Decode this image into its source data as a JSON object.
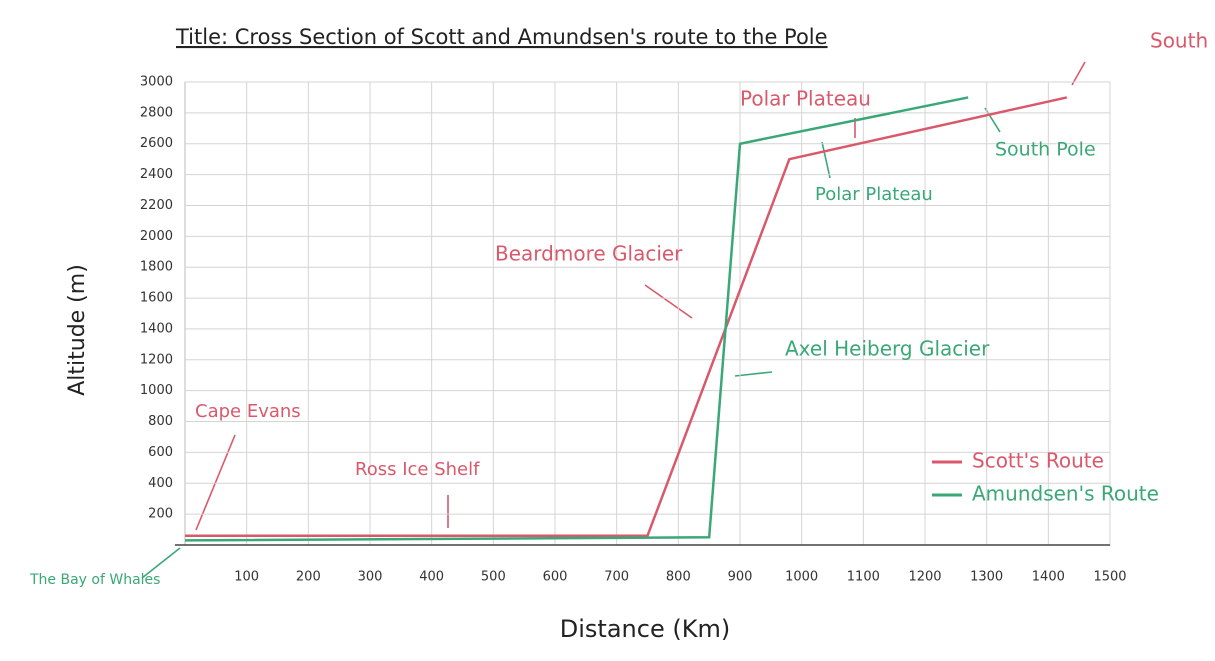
{
  "chart_data": {
    "type": "line",
    "title": "Title: Cross Section of Scott and Amundsen's route to the Pole",
    "x_label": "Distance (Km)",
    "y_label": "Altitude (m)",
    "x": [
      0,
      750,
      980,
      1430
    ],
    "series": [
      {
        "name": "Scott's Route",
        "color": "#d9596b",
        "x": [
          0,
          750,
          980,
          1430
        ],
        "values": [
          60,
          60,
          2500,
          2900
        ]
      },
      {
        "name": "Amundsen's Route",
        "color": "#3aa876",
        "x": [
          0,
          850,
          900,
          1270
        ],
        "values": [
          30,
          50,
          2600,
          2900
        ]
      }
    ],
    "xlim": [
      0,
      1500
    ],
    "ylim": [
      0,
      3000
    ],
    "xticks": [
      100,
      200,
      300,
      400,
      500,
      600,
      700,
      800,
      900,
      1000,
      1100,
      1200,
      1300,
      1400,
      1500
    ],
    "yticks": [
      200,
      400,
      600,
      800,
      1000,
      1200,
      1400,
      1600,
      1800,
      2000,
      2200,
      2400,
      2600,
      2800,
      3000
    ],
    "grid": true,
    "legend": "lower right",
    "annotations": [
      {
        "text": "South Pole",
        "color": "#d9596b"
      },
      {
        "text": "Polar Plateau",
        "color": "#d9596b"
      },
      {
        "text": "South Pole",
        "color": "#3aa876"
      },
      {
        "text": "Polar Plateau",
        "color": "#3aa876"
      },
      {
        "text": "Beardmore Glacier",
        "color": "#d9596b"
      },
      {
        "text": "Axel Heiberg Glacier",
        "color": "#3aa876"
      },
      {
        "text": "Cape Evans",
        "color": "#d9596b"
      },
      {
        "text": "Ross Ice Shelf",
        "color": "#d9596b"
      },
      {
        "text": "The Bay of Whales",
        "color": "#3aa876"
      }
    ]
  }
}
